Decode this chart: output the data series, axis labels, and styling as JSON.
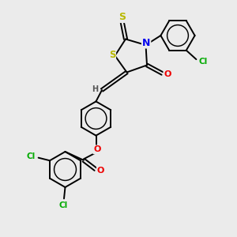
{
  "background_color": "#ebebeb",
  "atom_colors": {
    "S": "#b8b800",
    "N": "#0000ee",
    "O": "#ee0000",
    "Cl": "#00aa00",
    "C": "#000000",
    "H": "#555555"
  },
  "bond_color": "#000000",
  "bond_width": 1.4
}
